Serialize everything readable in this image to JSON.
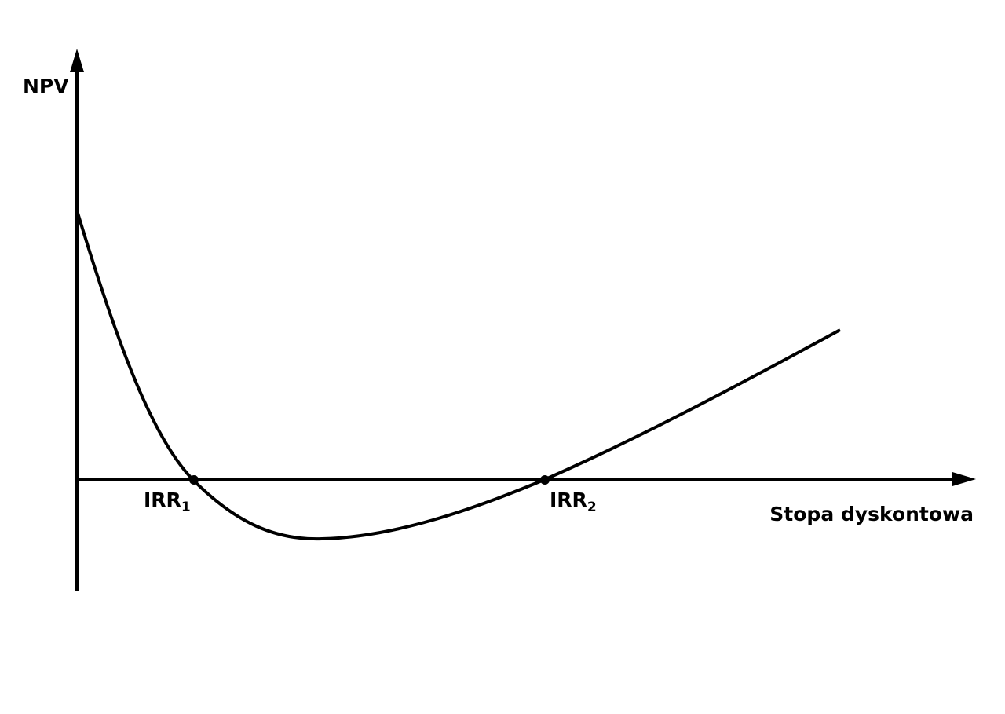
{
  "axes": {
    "y_label": "NPV",
    "x_label": "Stopa dyskontowa"
  },
  "points": [
    {
      "label": "IRR",
      "subscript": "1"
    },
    {
      "label": "IRR",
      "subscript": "2"
    }
  ]
}
